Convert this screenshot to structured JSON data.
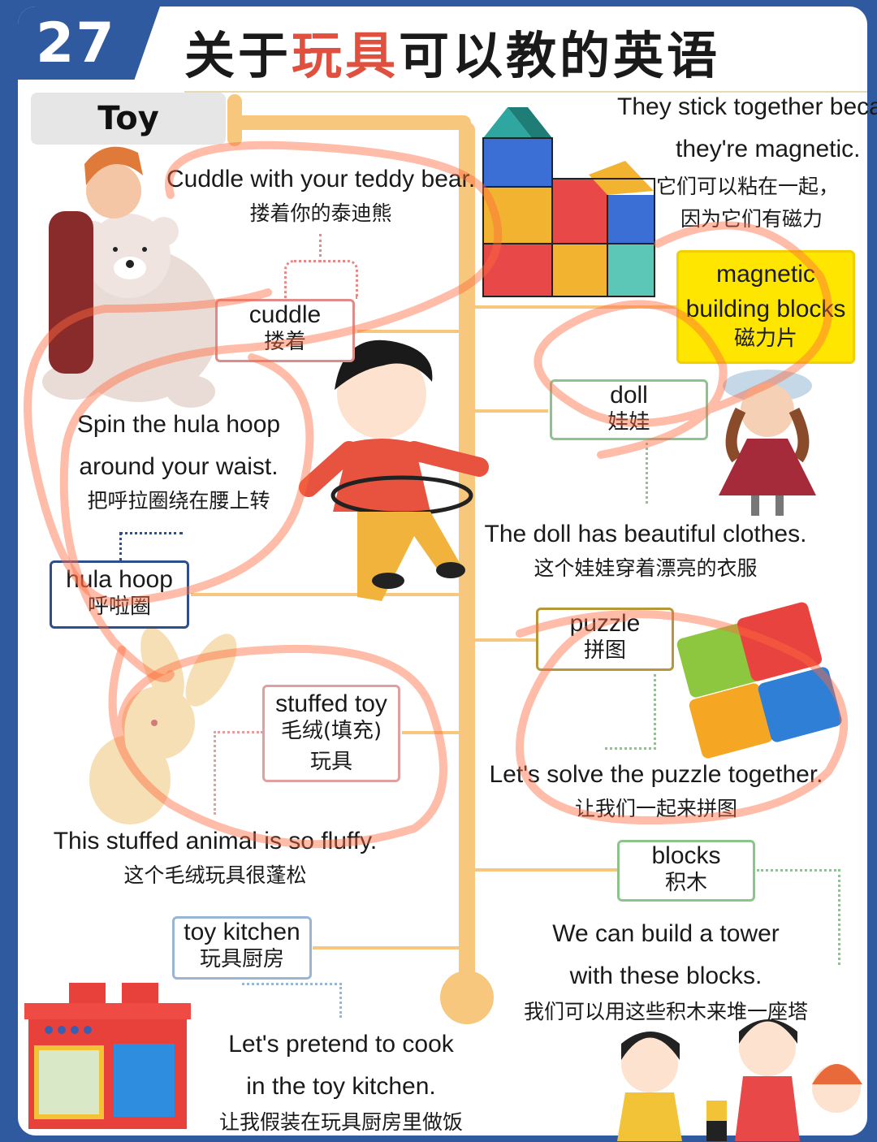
{
  "lesson_number": "27",
  "title": {
    "part1": "关于",
    "part2": "玩具",
    "part3": "可以教的英语"
  },
  "category": "Toy",
  "items": {
    "cuddle": {
      "en": "cuddle",
      "zh": "搂着",
      "sent_en": "Cuddle with your teddy bear.",
      "sent_zh": "搂着你的泰迪熊"
    },
    "magnetic": {
      "en1": "magnetic",
      "en2": "building blocks",
      "zh": "磁力片",
      "sent_en1": "They stick together beca",
      "sent_en2": "they're magnetic.",
      "sent_zh1": "它们可以粘在一起，",
      "sent_zh2": "因为它们有磁力"
    },
    "doll": {
      "en": "doll",
      "zh": "娃娃",
      "sent_en": "The doll has beautiful clothes.",
      "sent_zh": "这个娃娃穿着漂亮的衣服"
    },
    "hula": {
      "en": "hula hoop",
      "zh": "呼啦圈",
      "sent_en1": "Spin the hula hoop",
      "sent_en2": "around your waist.",
      "sent_zh": "把呼拉圈绕在腰上转"
    },
    "puzzle": {
      "en": "puzzle",
      "zh": "拼图",
      "sent_en": "Let's solve the puzzle together.",
      "sent_zh": "让我们一起来拼图"
    },
    "stuffed": {
      "en": "stuffed toy",
      "zh1": "毛绒(填充)",
      "zh2": "玩具",
      "sent_en": "This stuffed animal is so fluffy.",
      "sent_zh": "这个毛绒玩具很蓬松"
    },
    "blocks": {
      "en": "blocks",
      "zh": "积木",
      "sent_en1": "We can build a tower",
      "sent_en2": "with these blocks.",
      "sent_zh": "我们可以用这些积木来堆一座塔"
    },
    "kitchen": {
      "en": "toy kitchen",
      "zh": "玩具厨房",
      "sent_en1": "Let's pretend to cook",
      "sent_en2": "in the toy kitchen.",
      "sent_zh": "让我假装在玩具厨房里做饭"
    }
  },
  "colors": {
    "frame": "#2f5aa0",
    "spine": "#f6c77c",
    "title_red": "#e0503f",
    "highlight": "#ffe600",
    "scribble": "#ff6a3d"
  }
}
